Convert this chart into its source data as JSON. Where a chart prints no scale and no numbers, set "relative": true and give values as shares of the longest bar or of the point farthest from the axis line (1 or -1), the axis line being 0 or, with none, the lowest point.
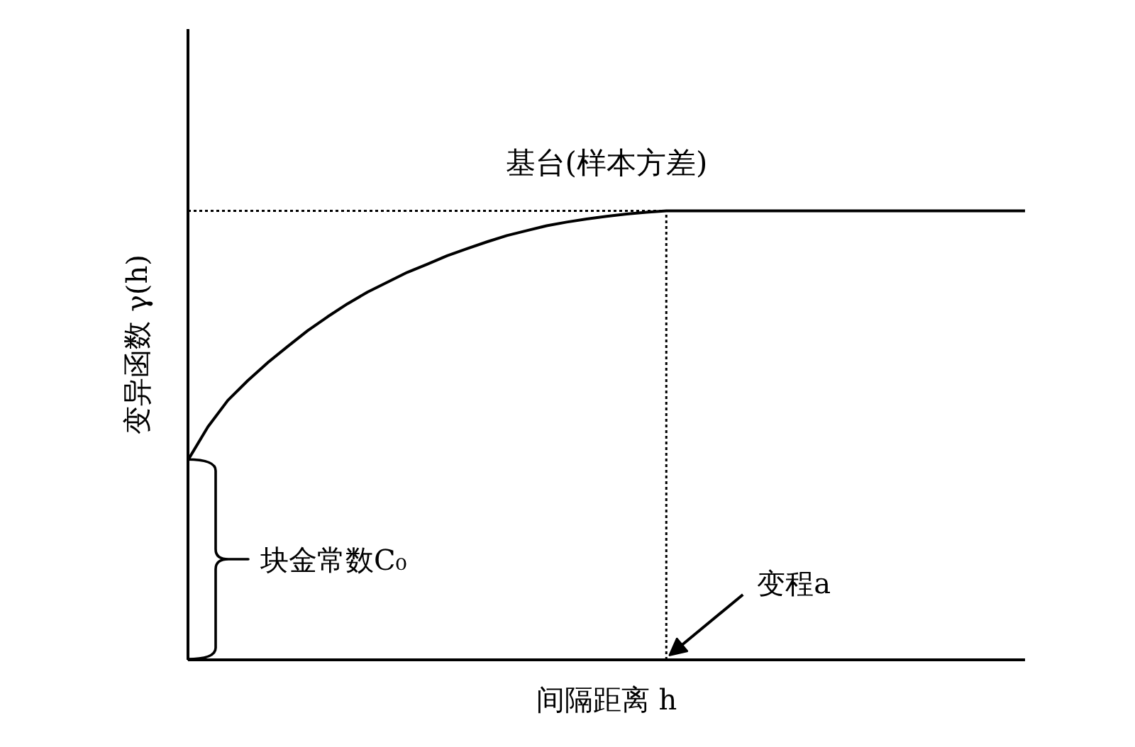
{
  "chart_data": {
    "type": "line",
    "relative": true,
    "xlabel": "间隔距离 h",
    "ylabel": "变异函数 γ(h)",
    "categories": [
      null,
      null,
      null,
      null,
      null,
      null,
      null,
      null,
      null,
      null,
      null,
      null,
      null,
      null,
      null,
      null,
      null,
      null,
      null,
      null,
      null,
      null,
      null,
      null,
      null,
      null,
      null,
      null,
      null,
      null,
      null,
      null,
      null,
      null,
      null,
      null,
      null,
      null,
      null,
      null,
      null,
      null,
      null
    ],
    "series": [
      {
        "color": "#000000",
        "values": [
          0.445,
          0.519,
          0.578,
          0.622,
          0.662,
          0.698,
          0.733,
          0.764,
          0.793,
          0.819,
          0.841,
          0.863,
          0.881,
          0.9,
          0.916,
          0.931,
          0.945,
          0.956,
          0.967,
          0.975,
          0.982,
          0.988,
          0.993,
          0.997,
          1,
          1,
          1,
          1,
          1,
          1,
          1,
          1,
          1,
          1,
          1,
          1,
          1,
          1,
          1,
          1,
          1,
          1,
          1
        ]
      }
    ],
    "ref_lines": [
      {
        "axis": "y",
        "value": 1,
        "label": "基台(样本方差)",
        "line_style": "dotted",
        "color": "#000000"
      }
    ],
    "annotations": [
      "块金常数C₀",
      "变程a"
    ]
  }
}
